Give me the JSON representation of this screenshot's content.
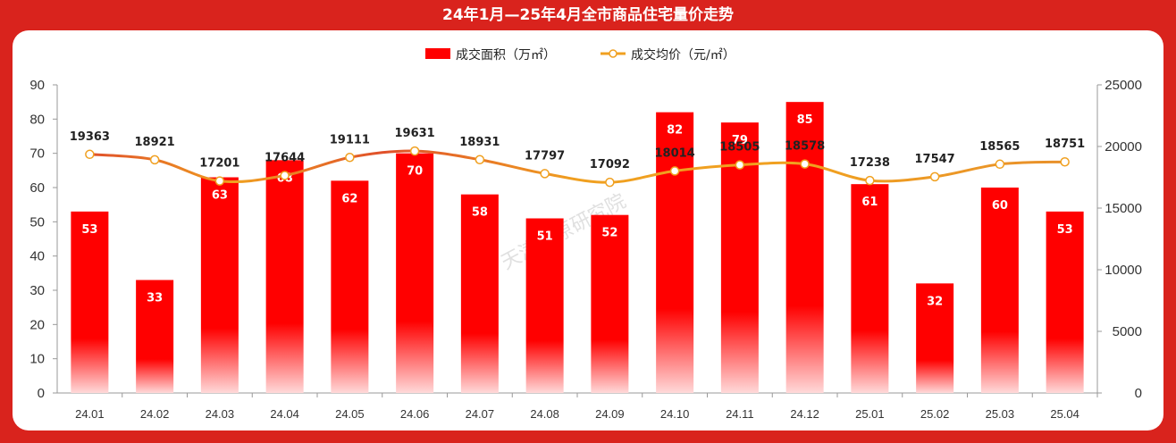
{
  "title": "24年1月—25年4月全市商品住宅量价走势",
  "watermark": "天津中原研究院",
  "legend": {
    "bar": "成交面积（万㎡）",
    "line": "成交均价（元/㎡）"
  },
  "colors": {
    "background": "#d9231d",
    "bar": "#ff0000",
    "line": "#f0a020",
    "line_warm": "#e0502a"
  },
  "chart_data": {
    "type": "bar",
    "categories": [
      "24.01",
      "24.02",
      "24.03",
      "24.04",
      "24.05",
      "24.06",
      "24.07",
      "24.08",
      "24.09",
      "24.10",
      "24.11",
      "24.12",
      "25.01",
      "25.02",
      "25.03",
      "25.04"
    ],
    "series": [
      {
        "name": "成交面积（万㎡）",
        "type": "bar",
        "axis": "left",
        "values": [
          53,
          33,
          63,
          68,
          62,
          70,
          58,
          51,
          52,
          82,
          79,
          85,
          61,
          32,
          60,
          53
        ]
      },
      {
        "name": "成交均价（元/㎡）",
        "type": "line",
        "axis": "right",
        "values": [
          19363,
          18921,
          17201,
          17644,
          19111,
          19631,
          18931,
          17797,
          17092,
          18014,
          18505,
          18578,
          17238,
          17547,
          18565,
          18751
        ]
      }
    ],
    "y_left": {
      "ticks": [
        0,
        10,
        20,
        30,
        40,
        50,
        60,
        70,
        80,
        90
      ],
      "range": [
        0,
        90
      ]
    },
    "y_right": {
      "ticks": [
        0,
        5000,
        10000,
        15000,
        20000,
        25000
      ],
      "range": [
        0,
        25000
      ]
    },
    "legend_position": "top-center",
    "grid": false
  }
}
